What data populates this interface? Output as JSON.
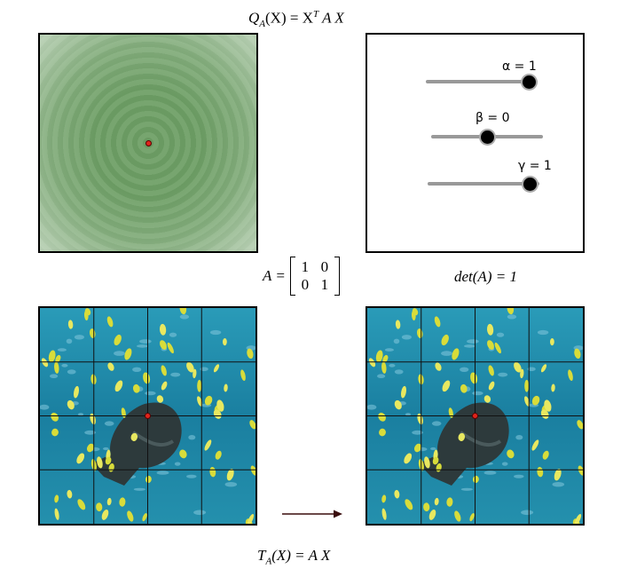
{
  "formulas": {
    "quadratic_lhs": "Q",
    "quadratic_sub": "A",
    "quadratic_rest": "(X) = X",
    "quadratic_sup": "T",
    "quadratic_tail": "A X",
    "matrix_lhs": "A =",
    "matrix": [
      [
        "1",
        "0"
      ],
      [
        "0",
        "1"
      ]
    ],
    "determinant": "det(A) = 1",
    "transform_lhs": "T",
    "transform_sub": "A",
    "transform_tail": "(X) = A X"
  },
  "sliders": [
    {
      "label": "α = 1",
      "value": 1,
      "min": -1,
      "max": 1
    },
    {
      "label": "β = 0",
      "value": 0,
      "min": -1,
      "max": 1
    },
    {
      "label": "γ = 1",
      "value": 1,
      "min": -1,
      "max": 1
    }
  ],
  "colors": {
    "quadratic_field": "#6a9a62",
    "point": "#e0251c",
    "water": "#1f87a4",
    "slider_track": "#999999",
    "arrow": "#3a0d0d"
  },
  "icons": {
    "origin_point": "red-dot-icon",
    "mapping_arrow": "right-arrow-icon"
  }
}
